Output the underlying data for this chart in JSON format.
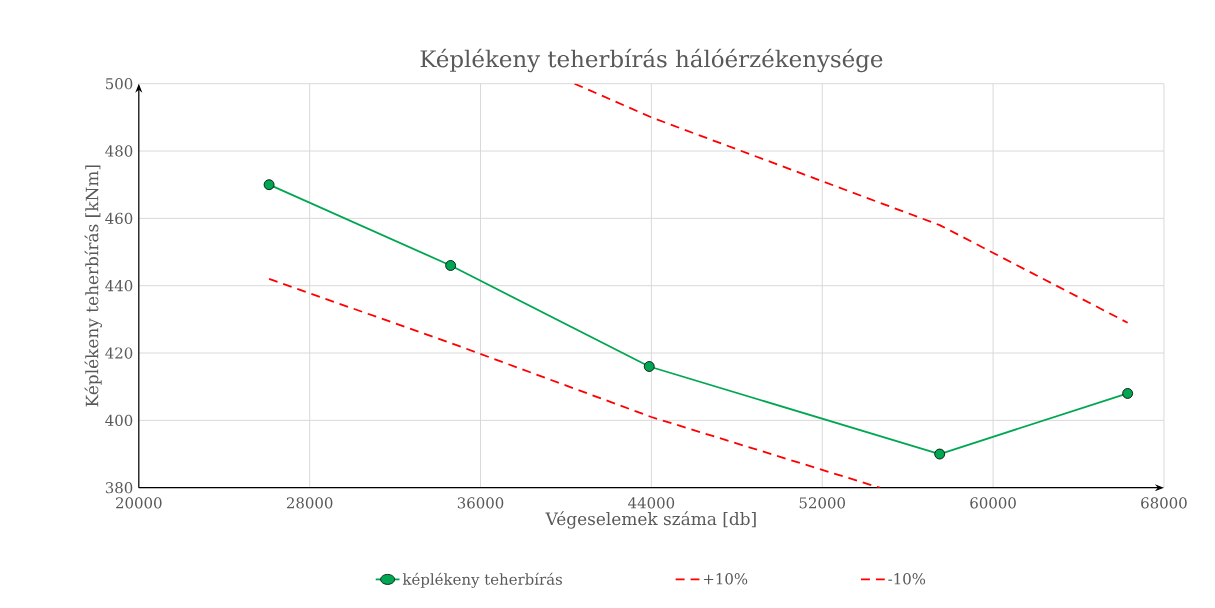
{
  "chart_data": {
    "type": "line",
    "title": "Képlékeny teherbírás hálóérzékenysége",
    "xlabel": "Végeselemek száma [db]",
    "ylabel": "Képlékeny teherbírás [kNm]",
    "xlim": [
      20000,
      68000
    ],
    "xticks": [
      20000,
      28000,
      36000,
      44000,
      52000,
      60000,
      68000
    ],
    "ylim": [
      380,
      500
    ],
    "yticks": [
      380,
      400,
      420,
      440,
      460,
      480,
      500
    ],
    "grid": true,
    "legend": "bottom",
    "series": [
      {
        "name": "képlékeny teherbírás",
        "color": "#00a651",
        "x": [
          26100,
          34600,
          43900,
          57500,
          66300
        ],
        "values": [
          470,
          446,
          416,
          390,
          408
        ],
        "marker": "circle",
        "line_style": "solid"
      },
      {
        "name": "+10%",
        "color": "#ff0000",
        "x": [
          40400,
          44000,
          57500,
          66300
        ],
        "values": [
          500,
          490,
          458,
          429
        ],
        "marker": "none",
        "line_style": "dashed"
      },
      {
        "name": "-10%",
        "color": "#ff0000",
        "x": [
          26100,
          34600,
          44000,
          54700
        ],
        "values": [
          442,
          423,
          401,
          380
        ],
        "marker": "none",
        "line_style": "dashed"
      }
    ]
  }
}
